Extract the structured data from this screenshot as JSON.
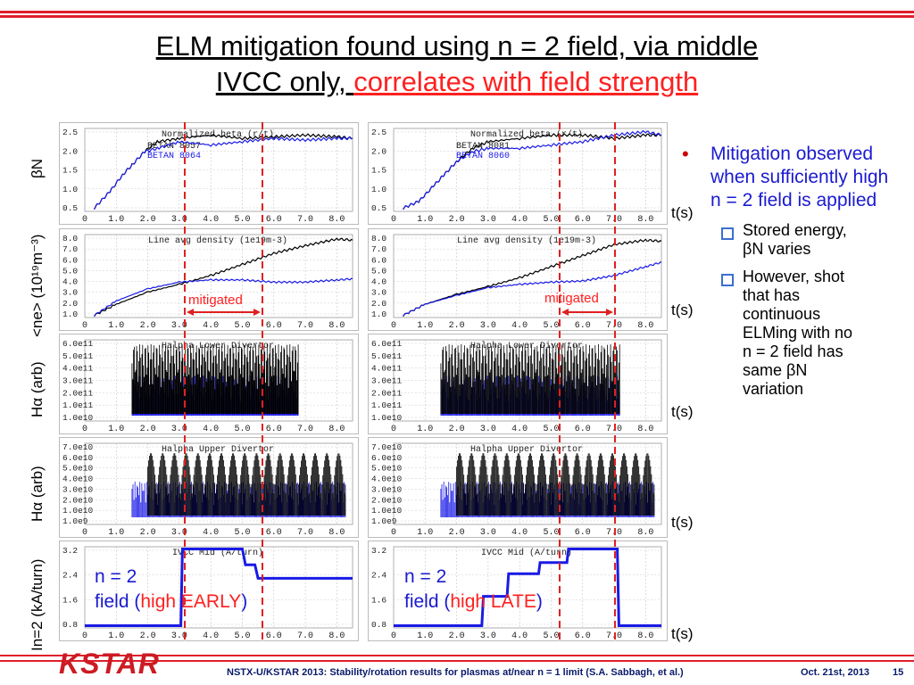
{
  "title": {
    "line1": "ELM mitigation found using n = 2 field, via middle",
    "line2_black": "IVCC only, ",
    "line2_red": "correlates with field strength"
  },
  "row_labels": {
    "betaN": "βN",
    "density": "<ne> (10¹⁹m⁻³)",
    "halpha1": "Hα (arb)",
    "halpha2": "Hα (arb)",
    "ivcc": "In=2 (kA/turn)"
  },
  "time_label": "t(s)",
  "panel_titles": {
    "left": [
      "Normalized beta (r/t)",
      "Line avg density (1e19m-3)",
      "Halpha Lower Divertor",
      "Halpha Upper Divertor",
      "IVCC Mid (A/turn)"
    ],
    "right": [
      "Normalized beta (r/t)",
      "Line avg density (1e19m-3)",
      "Halpha Lower Divertor",
      "Halpha Upper Divertor",
      "IVCC Mid (A/turn)"
    ]
  },
  "legends": {
    "left": [
      "BETAN 8057",
      "BETAN 8064"
    ],
    "right": [
      "BETAN 8081",
      "BETAN 8060"
    ]
  },
  "ticks": {
    "x": [
      "0",
      "1.0",
      "2.0",
      "3.0",
      "4.0",
      "5.0",
      "6.0",
      "7.0",
      "8.0"
    ],
    "beta": [
      "2.5",
      "2.0",
      "1.5",
      "1.0",
      "0.5"
    ],
    "density": [
      "8.0",
      "7.0",
      "6.0",
      "5.0",
      "4.0",
      "3.0",
      "2.0",
      "1.0"
    ],
    "ha_lower": [
      "6.0e11",
      "5.0e11",
      "4.0e11",
      "3.0e11",
      "2.0e11",
      "1.0e11",
      "1.0e10"
    ],
    "ha_upper": [
      "7.0e10",
      "6.0e10",
      "5.0e10",
      "4.0e10",
      "3.0e10",
      "2.0e10",
      "1.0e10",
      "1.0e9"
    ],
    "ivcc": [
      "3.2",
      "2.4",
      "1.6",
      "0.8"
    ]
  },
  "mitigated": "mitigated",
  "annotations": {
    "left": {
      "l1": "n = 2",
      "l2a": "field (",
      "l2red": "high EARLY",
      "l2b": ")"
    },
    "right": {
      "l1": "n = 2",
      "l2a": "field (",
      "l2red": "high LATE",
      "l2b": ")"
    }
  },
  "bullets": {
    "main": "Mitigation observed when sufficiently high n = 2 field is applied",
    "sub1": "Stored energy, βN varies",
    "sub2": "However, shot that has continuous ELMing with no n = 2 field has same βN variation"
  },
  "footer": {
    "logo": "KSTAR",
    "citation": "NSTX-U/KSTAR 2013: Stability/rotation results for plasmas at/near  n = 1 limit (S.A. Sabbagh, et al.)",
    "date": "Oct. 21st, 2013",
    "page": "15"
  },
  "colors": {
    "shot_a": "#000000",
    "shot_b": "#1a1ae6",
    "marker": "#e02020",
    "accent_red": "#e0202a"
  },
  "chart_data": [
    {
      "type": "line",
      "title": "Normalized beta (r/t)",
      "xlabel": "t(s)",
      "ylabel": "βN",
      "xlim": [
        0,
        8.5
      ],
      "ylim": [
        0.2,
        2.7
      ],
      "series": [
        {
          "name": "BETAN 8057",
          "x": [
            0.3,
            0.8,
            1.2,
            1.5,
            1.9,
            2.3,
            3.0,
            4.0,
            5.0,
            6.0,
            7.0,
            8.0,
            8.5
          ],
          "y": [
            0.3,
            0.8,
            1.3,
            1.6,
            2.0,
            2.3,
            2.4,
            2.5,
            2.4,
            2.45,
            2.5,
            2.45,
            2.4
          ]
        },
        {
          "name": "BETAN 8064",
          "x": [
            0.3,
            0.8,
            1.2,
            1.5,
            1.9,
            2.3,
            3.0,
            4.0,
            5.0,
            6.0,
            7.0,
            8.0,
            8.5
          ],
          "y": [
            0.3,
            0.8,
            1.3,
            1.6,
            2.0,
            2.1,
            2.3,
            2.2,
            2.3,
            2.4,
            2.35,
            2.4,
            2.4
          ]
        }
      ]
    },
    {
      "type": "line",
      "title": "Line avg density (1e19m-3)",
      "xlabel": "t(s)",
      "ylabel": "<ne> (10¹⁹m⁻³)",
      "xlim": [
        0,
        8.5
      ],
      "ylim": [
        1.0,
        8.5
      ],
      "series": [
        {
          "name": "8057",
          "x": [
            0.3,
            1.0,
            2.0,
            3.0,
            4.0,
            5.0,
            6.0,
            7.0,
            8.0,
            8.5
          ],
          "y": [
            1.2,
            2.2,
            3.3,
            4.0,
            4.8,
            5.8,
            6.8,
            7.5,
            8.1,
            8.0
          ]
        },
        {
          "name": "8064",
          "x": [
            0.3,
            1.0,
            2.0,
            3.0,
            4.0,
            5.0,
            6.0,
            7.0,
            8.0,
            8.5
          ],
          "y": [
            1.2,
            2.5,
            3.6,
            4.2,
            4.4,
            4.4,
            4.2,
            4.2,
            4.4,
            4.5
          ]
        }
      ]
    },
    {
      "type": "line",
      "title": "Halpha Lower Divertor",
      "xlabel": "t(s)",
      "ylabel": "Hα (arb)",
      "xlim": [
        0,
        8.5
      ]
    },
    {
      "type": "line",
      "title": "Halpha Upper Divertor",
      "xlabel": "t(s)",
      "ylabel": "Hα (arb)",
      "xlim": [
        0,
        8.5
      ]
    },
    {
      "type": "line",
      "title": "IVCC Mid (A/turn)",
      "xlabel": "t(s)",
      "ylabel": "In=2 (kA/turn)",
      "xlim": [
        0,
        8.5
      ],
      "ylim": [
        0,
        3.6
      ],
      "series": [
        {
          "name": "left",
          "x": [
            0,
            3.05,
            3.1,
            3.5,
            3.6,
            5.0,
            5.1,
            5.4,
            5.5,
            8.5
          ],
          "y": [
            0.1,
            0.1,
            3.5,
            3.5,
            3.5,
            3.5,
            2.8,
            2.8,
            2.2,
            2.2
          ]
        }
      ]
    },
    {
      "type": "line",
      "title": "Normalized beta (r/t)",
      "xlabel": "t(s)",
      "ylabel": "βN",
      "xlim": [
        0,
        8.5
      ],
      "ylim": [
        0.2,
        2.7
      ],
      "series": [
        {
          "name": "BETAN 8081",
          "x": [
            0.3,
            0.8,
            1.3,
            1.6,
            2.0,
            2.5,
            3.0,
            4.0,
            5.0,
            6.0,
            7.0,
            8.0,
            8.5
          ],
          "y": [
            0.3,
            0.5,
            1.0,
            1.3,
            1.7,
            2.1,
            2.3,
            2.4,
            2.5,
            2.5,
            2.4,
            2.5,
            2.5
          ]
        },
        {
          "name": "BETAN 8060",
          "x": [
            0.3,
            0.8,
            1.3,
            1.6,
            2.0,
            2.5,
            3.0,
            4.0,
            5.0,
            6.0,
            7.0,
            8.0,
            8.5
          ],
          "y": [
            0.3,
            0.5,
            1.0,
            1.3,
            1.7,
            2.0,
            2.1,
            2.1,
            2.2,
            2.3,
            2.5,
            2.6,
            2.5
          ]
        }
      ]
    },
    {
      "type": "line",
      "title": "Line avg density (1e19m-3)",
      "xlabel": "t(s)",
      "ylabel": "<ne> (10¹⁹m⁻³)",
      "xlim": [
        0,
        8.5
      ],
      "ylim": [
        1.0,
        8.5
      ],
      "series": [
        {
          "name": "8081",
          "x": [
            0.3,
            1.0,
            2.0,
            3.0,
            4.0,
            5.0,
            6.0,
            7.0,
            8.0,
            8.5
          ],
          "y": [
            1.2,
            2.2,
            3.1,
            3.8,
            4.6,
            5.6,
            6.6,
            7.6,
            8.0,
            7.9
          ]
        },
        {
          "name": "8060",
          "x": [
            0.3,
            1.0,
            2.0,
            3.0,
            4.0,
            5.0,
            6.0,
            7.0,
            8.0,
            8.5
          ],
          "y": [
            1.2,
            2.2,
            3.0,
            3.7,
            4.0,
            4.2,
            4.3,
            4.8,
            5.6,
            6.0
          ]
        }
      ]
    },
    {
      "type": "line",
      "title": "Halpha Lower Divertor",
      "xlabel": "t(s)",
      "ylabel": "Hα (arb)",
      "xlim": [
        0,
        8.5
      ]
    },
    {
      "type": "line",
      "title": "Halpha Upper Divertor",
      "xlabel": "t(s)",
      "ylabel": "Hα (arb)",
      "xlim": [
        0,
        8.5
      ]
    },
    {
      "type": "line",
      "title": "IVCC Mid (A/turn)",
      "xlabel": "t(s)",
      "ylabel": "In=2 (kA/turn)",
      "xlim": [
        0,
        8.5
      ],
      "ylim": [
        0,
        3.6
      ],
      "series": [
        {
          "name": "right",
          "x": [
            0,
            2.8,
            2.85,
            3.6,
            3.65,
            4.6,
            4.65,
            5.5,
            5.55,
            7.1,
            7.15,
            8.5
          ],
          "y": [
            0.1,
            0.1,
            1.4,
            1.4,
            2.4,
            2.4,
            2.9,
            2.9,
            3.5,
            3.5,
            0.1,
            0.1
          ]
        }
      ]
    }
  ]
}
